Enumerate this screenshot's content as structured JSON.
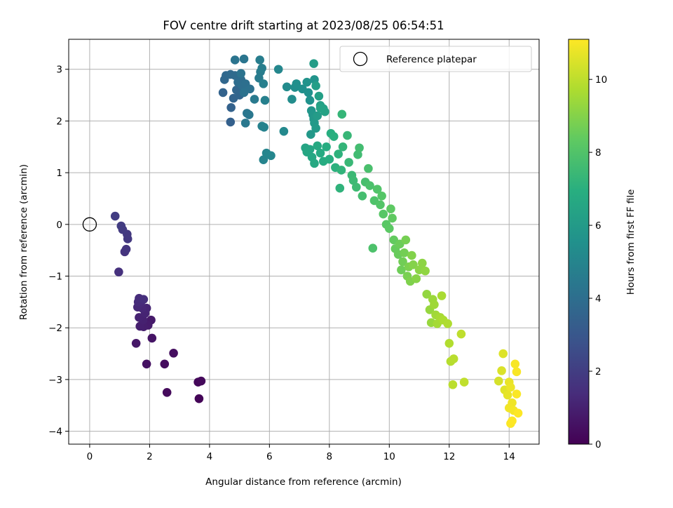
{
  "chart_data": {
    "type": "scatter",
    "title": "FOV centre drift starting at 2023/08/25 06:54:51",
    "xlabel": "Angular distance from reference (arcmin)",
    "ylabel": "Rotation from reference (arcmin)",
    "xlim": [
      -0.7,
      15.0
    ],
    "ylim": [
      -4.25,
      3.58
    ],
    "xticks": [
      0,
      2,
      4,
      6,
      8,
      10,
      12,
      14
    ],
    "yticks": [
      -4,
      -3,
      -2,
      -1,
      0,
      1,
      2,
      3
    ],
    "grid": true,
    "legend": {
      "placement": "top-right",
      "entries": [
        "Reference platepar"
      ]
    },
    "colorbar": {
      "label": "Hours from first FF file",
      "range": [
        0,
        11.1
      ],
      "ticks": [
        0,
        2,
        4,
        6,
        8,
        10
      ],
      "colormap": "viridis"
    },
    "reference_point": {
      "x": 0,
      "y": 0
    },
    "points": [
      [
        3.65,
        -3.37,
        0.1
      ],
      [
        3.62,
        -3.05,
        0.2
      ],
      [
        3.72,
        -3.03,
        0.25
      ],
      [
        2.58,
        -3.25,
        0.3
      ],
      [
        2.5,
        -2.7,
        0.35
      ],
      [
        2.8,
        -2.49,
        0.4
      ],
      [
        1.9,
        -2.7,
        0.5
      ],
      [
        2.08,
        -2.2,
        0.6
      ],
      [
        1.55,
        -2.3,
        0.7
      ],
      [
        2.05,
        -1.85,
        0.8
      ],
      [
        1.95,
        -1.95,
        0.85
      ],
      [
        1.8,
        -1.98,
        0.9
      ],
      [
        1.68,
        -1.97,
        0.95
      ],
      [
        1.78,
        -1.85,
        1.0
      ],
      [
        1.65,
        -1.8,
        1.05
      ],
      [
        1.85,
        -1.72,
        1.1
      ],
      [
        1.9,
        -1.62,
        1.15
      ],
      [
        1.75,
        -1.62,
        1.2
      ],
      [
        1.6,
        -1.6,
        1.25
      ],
      [
        1.7,
        -1.52,
        1.3
      ],
      [
        1.62,
        -1.5,
        1.35
      ],
      [
        1.65,
        -1.43,
        1.4
      ],
      [
        1.8,
        -1.45,
        1.45
      ],
      [
        0.97,
        -0.92,
        1.55
      ],
      [
        1.17,
        -0.53,
        1.65
      ],
      [
        1.22,
        -0.48,
        1.7
      ],
      [
        1.27,
        -0.28,
        1.8
      ],
      [
        1.25,
        -0.19,
        1.85
      ],
      [
        1.1,
        -0.1,
        1.9
      ],
      [
        1.05,
        -0.03,
        1.95
      ],
      [
        0.85,
        0.16,
        2.0
      ],
      [
        4.7,
        1.98,
        3.4
      ],
      [
        4.72,
        2.26,
        3.45
      ],
      [
        4.45,
        2.55,
        3.5
      ],
      [
        4.8,
        2.44,
        3.55
      ],
      [
        5.0,
        2.5,
        3.6
      ],
      [
        4.9,
        2.6,
        3.65
      ],
      [
        4.5,
        2.8,
        3.7
      ],
      [
        4.55,
        2.88,
        3.75
      ],
      [
        4.7,
        2.9,
        3.8
      ],
      [
        4.85,
        2.88,
        3.85
      ],
      [
        5.05,
        2.8,
        3.9
      ],
      [
        4.95,
        2.75,
        3.95
      ],
      [
        5.1,
        2.68,
        4.0
      ],
      [
        5.2,
        2.72,
        4.05
      ],
      [
        5.35,
        2.62,
        4.1
      ],
      [
        5.15,
        2.55,
        4.15
      ],
      [
        5.05,
        2.92,
        4.2
      ],
      [
        4.85,
        3.18,
        4.25
      ],
      [
        5.15,
        3.2,
        4.3
      ],
      [
        5.25,
        2.15,
        4.35
      ],
      [
        5.32,
        2.12,
        4.4
      ],
      [
        5.2,
        1.96,
        4.45
      ],
      [
        5.5,
        2.42,
        4.5
      ],
      [
        5.65,
        2.83,
        4.55
      ],
      [
        5.7,
        2.95,
        4.6
      ],
      [
        5.68,
        3.18,
        4.65
      ],
      [
        5.75,
        3.02,
        4.7
      ],
      [
        5.8,
        2.72,
        4.75
      ],
      [
        5.85,
        2.4,
        4.8
      ],
      [
        5.75,
        1.9,
        4.85
      ],
      [
        5.82,
        1.88,
        4.9
      ],
      [
        5.8,
        1.25,
        4.95
      ],
      [
        5.9,
        1.38,
        5.0
      ],
      [
        6.05,
        1.33,
        5.05
      ],
      [
        6.3,
        3.0,
        5.1
      ],
      [
        6.48,
        1.8,
        5.2
      ],
      [
        6.58,
        2.66,
        5.3
      ],
      [
        6.75,
        2.42,
        5.35
      ],
      [
        6.85,
        2.65,
        5.4
      ],
      [
        6.9,
        2.72,
        5.45
      ],
      [
        7.1,
        2.62,
        5.5
      ],
      [
        7.3,
        2.55,
        5.55
      ],
      [
        7.35,
        2.4,
        5.6
      ],
      [
        7.25,
        2.75,
        5.65
      ],
      [
        7.5,
        2.8,
        5.7
      ],
      [
        7.4,
        2.2,
        5.75
      ],
      [
        7.45,
        2.12,
        5.8
      ],
      [
        7.48,
        2.04,
        5.85
      ],
      [
        7.38,
        1.74,
        5.9
      ],
      [
        7.5,
        1.96,
        5.95
      ],
      [
        7.55,
        1.86,
        6.0
      ],
      [
        7.6,
        2.1,
        6.05
      ],
      [
        7.48,
        3.11,
        6.1
      ],
      [
        7.55,
        2.68,
        6.15
      ],
      [
        7.65,
        2.48,
        6.2
      ],
      [
        7.7,
        2.3,
        6.25
      ],
      [
        7.8,
        2.24,
        6.3
      ],
      [
        7.85,
        2.18,
        6.35
      ],
      [
        7.7,
        2.25,
        6.4
      ],
      [
        7.2,
        1.48,
        6.45
      ],
      [
        7.35,
        1.45,
        6.5
      ],
      [
        7.25,
        1.4,
        6.55
      ],
      [
        7.42,
        1.3,
        6.6
      ],
      [
        7.5,
        1.18,
        6.65
      ],
      [
        7.6,
        1.52,
        6.7
      ],
      [
        7.7,
        1.38,
        6.75
      ],
      [
        7.8,
        1.22,
        6.8
      ],
      [
        7.9,
        1.5,
        6.85
      ],
      [
        8.0,
        1.26,
        6.9
      ],
      [
        8.05,
        1.76,
        6.95
      ],
      [
        8.15,
        1.7,
        7.0
      ],
      [
        8.2,
        1.1,
        7.05
      ],
      [
        8.3,
        1.36,
        7.1
      ],
      [
        8.35,
        0.7,
        7.15
      ],
      [
        8.4,
        1.05,
        7.2
      ],
      [
        8.45,
        1.5,
        7.25
      ],
      [
        8.42,
        2.13,
        7.3
      ],
      [
        8.6,
        1.72,
        7.35
      ],
      [
        8.65,
        1.2,
        7.4
      ],
      [
        8.75,
        0.95,
        7.45
      ],
      [
        8.8,
        0.85,
        7.5
      ],
      [
        8.9,
        0.72,
        7.55
      ],
      [
        8.95,
        1.35,
        7.6
      ],
      [
        9.0,
        1.48,
        7.65
      ],
      [
        9.1,
        0.55,
        7.7
      ],
      [
        9.2,
        0.82,
        7.75
      ],
      [
        9.3,
        1.08,
        7.8
      ],
      [
        9.35,
        0.75,
        7.85
      ],
      [
        9.45,
        -0.46,
        7.9
      ],
      [
        9.5,
        0.46,
        7.95
      ],
      [
        9.6,
        0.68,
        8.0
      ],
      [
        9.7,
        0.38,
        8.05
      ],
      [
        9.75,
        0.55,
        8.1
      ],
      [
        9.8,
        0.2,
        8.15
      ],
      [
        9.9,
        0.0,
        8.2
      ],
      [
        10.0,
        -0.08,
        8.25
      ],
      [
        10.05,
        0.3,
        8.3
      ],
      [
        10.1,
        0.12,
        8.35
      ],
      [
        10.15,
        -0.3,
        8.4
      ],
      [
        10.2,
        -0.47,
        8.45
      ],
      [
        10.3,
        -0.58,
        8.5
      ],
      [
        10.35,
        -0.38,
        8.55
      ],
      [
        10.4,
        -0.88,
        8.6
      ],
      [
        10.45,
        -0.72,
        8.65
      ],
      [
        10.5,
        -0.55,
        8.7
      ],
      [
        10.55,
        -0.3,
        8.75
      ],
      [
        10.6,
        -1.0,
        8.8
      ],
      [
        10.65,
        -0.82,
        8.85
      ],
      [
        10.7,
        -1.1,
        8.9
      ],
      [
        10.75,
        -0.6,
        8.95
      ],
      [
        10.8,
        -0.78,
        9.0
      ],
      [
        10.9,
        -1.05,
        9.05
      ],
      [
        11.0,
        -0.88,
        9.1
      ],
      [
        11.1,
        -0.75,
        9.15
      ],
      [
        11.2,
        -0.9,
        9.2
      ],
      [
        11.25,
        -1.35,
        9.25
      ],
      [
        11.35,
        -1.65,
        9.3
      ],
      [
        11.4,
        -1.9,
        9.35
      ],
      [
        11.45,
        -1.45,
        9.4
      ],
      [
        11.5,
        -1.55,
        9.45
      ],
      [
        11.55,
        -1.75,
        9.5
      ],
      [
        11.6,
        -1.92,
        9.55
      ],
      [
        11.7,
        -1.8,
        9.6
      ],
      [
        11.75,
        -1.38,
        9.65
      ],
      [
        11.8,
        -1.85,
        9.7
      ],
      [
        11.95,
        -1.92,
        9.75
      ],
      [
        12.0,
        -2.3,
        9.8
      ],
      [
        12.05,
        -2.65,
        9.85
      ],
      [
        12.15,
        -2.6,
        9.9
      ],
      [
        12.12,
        -3.1,
        9.95
      ],
      [
        12.4,
        -2.12,
        10.0
      ],
      [
        12.5,
        -3.05,
        10.05
      ],
      [
        13.65,
        -3.03,
        10.4
      ],
      [
        13.75,
        -2.83,
        10.5
      ],
      [
        13.8,
        -2.5,
        10.55
      ],
      [
        13.85,
        -3.2,
        10.6
      ],
      [
        13.95,
        -3.3,
        10.7
      ],
      [
        14.0,
        -3.05,
        10.75
      ],
      [
        14.05,
        -3.15,
        10.8
      ],
      [
        14.1,
        -3.45,
        10.85
      ],
      [
        14.0,
        -3.55,
        10.9
      ],
      [
        14.15,
        -3.6,
        10.95
      ],
      [
        14.2,
        -2.7,
        11.0
      ],
      [
        14.25,
        -2.85,
        11.02
      ],
      [
        14.25,
        -3.28,
        11.05
      ],
      [
        14.05,
        -3.85,
        11.07
      ],
      [
        14.1,
        -3.8,
        11.1
      ],
      [
        14.3,
        -3.65,
        11.1
      ]
    ]
  }
}
